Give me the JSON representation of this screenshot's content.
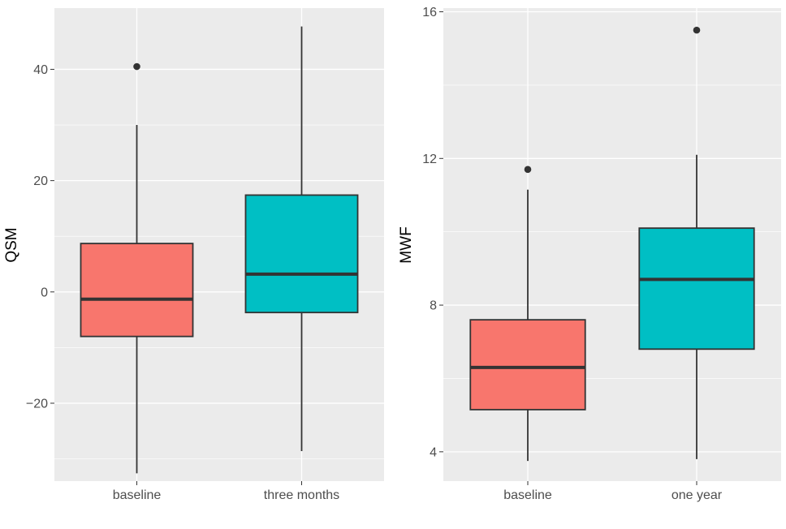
{
  "chart_data": [
    {
      "type": "boxplot",
      "ylabel": "QSM",
      "xlabel": "",
      "categories": [
        "baseline",
        "three months"
      ],
      "colors": [
        "#F8766D",
        "#00BFC4"
      ],
      "ylim": [
        -34,
        51
      ],
      "yticks": [
        -20,
        0,
        20,
        40
      ],
      "ytick_labels": [
        "−20",
        "0",
        "20",
        "40"
      ],
      "minor_yticks": [
        -30,
        -10,
        10,
        30
      ],
      "boxes": [
        {
          "name": "baseline",
          "q1": -8,
          "median": -1.3,
          "q3": 8.7,
          "whisker_low": -32.6,
          "whisker_high": 30,
          "outliers": [
            40.5
          ]
        },
        {
          "name": "three months",
          "q1": -3.7,
          "median": 3.2,
          "q3": 17.4,
          "whisker_low": -28.6,
          "whisker_high": 47.7,
          "outliers": []
        }
      ],
      "grid": true
    },
    {
      "type": "boxplot",
      "ylabel": "MWF",
      "xlabel": "",
      "categories": [
        "baseline",
        "one year"
      ],
      "colors": [
        "#F8766D",
        "#00BFC4"
      ],
      "ylim": [
        3.2,
        16.1
      ],
      "yticks": [
        4,
        8,
        12,
        16
      ],
      "ytick_labels": [
        "4",
        "8",
        "12",
        "16"
      ],
      "minor_yticks": [
        6,
        10,
        14
      ],
      "boxes": [
        {
          "name": "baseline",
          "q1": 5.15,
          "median": 6.3,
          "q3": 7.6,
          "whisker_low": 3.75,
          "whisker_high": 11.15,
          "outliers": [
            11.7
          ]
        },
        {
          "name": "one year",
          "q1": 6.8,
          "median": 8.7,
          "q3": 10.1,
          "whisker_low": 3.8,
          "whisker_high": 12.1,
          "outliers": [
            15.5
          ]
        }
      ],
      "grid": true
    }
  ]
}
